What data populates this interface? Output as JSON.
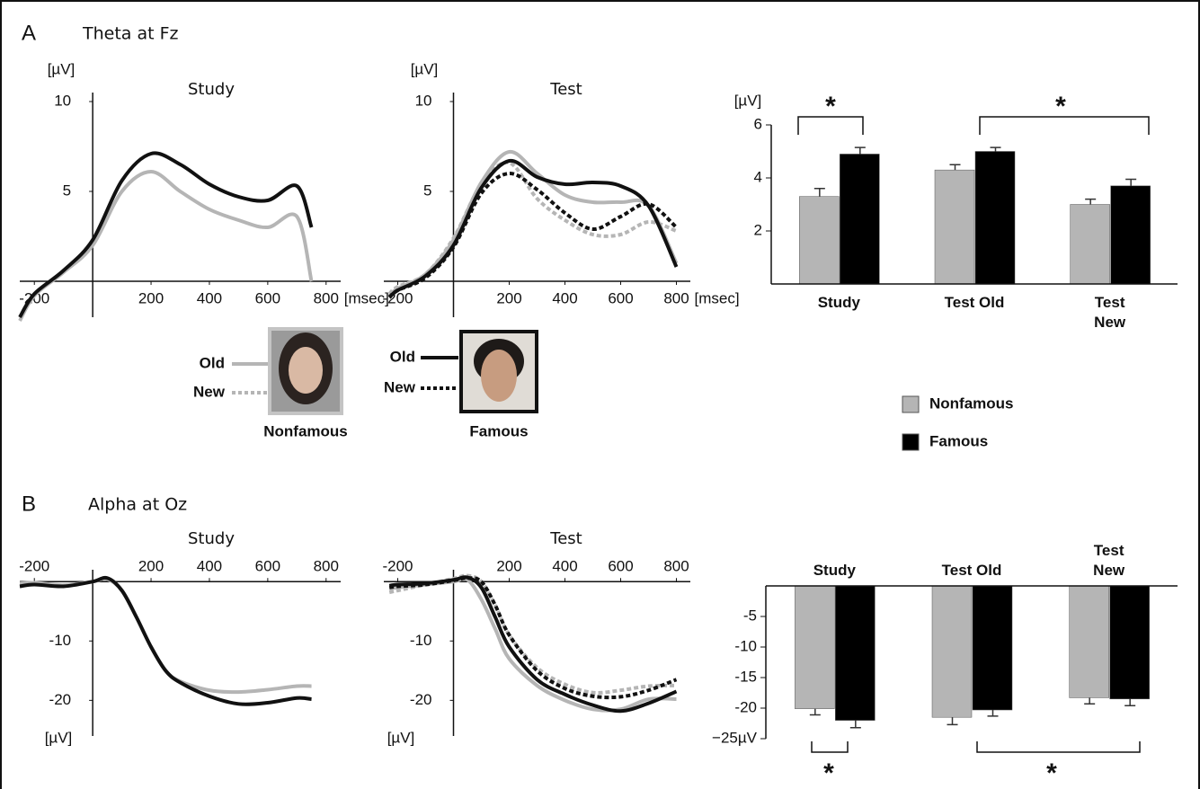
{
  "panels": [
    {
      "label": "A",
      "title": "Theta at Fz"
    },
    {
      "label": "B",
      "title": "Alpha at Oz"
    }
  ],
  "face_legend": {
    "nonfamous": {
      "old": "Old",
      "new": "New",
      "caption": "Nonfamous"
    },
    "famous": {
      "old": "Old",
      "new": "New",
      "caption": "Famous"
    }
  },
  "chart_data": [
    {
      "type": "line",
      "title": "Study",
      "ylabel": "[µV]",
      "xlabel": "[msec]",
      "x": [
        -250,
        -200,
        -100,
        0,
        100,
        200,
        300,
        400,
        500,
        600,
        700,
        750
      ],
      "xlim": [
        -250,
        850
      ],
      "ylim": [
        -2,
        10.5
      ],
      "xticks": [
        -200,
        200,
        400,
        600,
        800
      ],
      "yticks": [
        5,
        10
      ],
      "series": [
        {
          "color": "#b5b5b5",
          "dash": false,
          "values": [
            -2.2,
            -0.8,
            0.5,
            2.0,
            5.0,
            6.1,
            5.0,
            4.0,
            3.4,
            3.0,
            3.6,
            0
          ]
        },
        {
          "color": "#111111",
          "dash": false,
          "values": [
            -2,
            -0.7,
            0.6,
            2.3,
            5.6,
            7.1,
            6.5,
            5.4,
            4.7,
            4.5,
            5.3,
            3.0
          ]
        }
      ]
    },
    {
      "type": "line",
      "title": "Test",
      "ylabel": "[µV]",
      "xlabel": "[msec]",
      "x": [
        -230,
        -200,
        -100,
        0,
        100,
        200,
        300,
        400,
        500,
        600,
        700,
        800
      ],
      "xlim": [
        -250,
        850
      ],
      "ylim": [
        -2,
        10.5
      ],
      "xticks": [
        -200,
        200,
        400,
        600,
        800
      ],
      "yticks": [
        5,
        10
      ],
      "series": [
        {
          "color": "#b5b5b5",
          "dash": true,
          "values": [
            -0.7,
            -0.3,
            0.4,
            2.4,
            5.4,
            6.6,
            4.6,
            3.4,
            2.6,
            2.6,
            3.3,
            2.8
          ]
        },
        {
          "color": "#b5b5b5",
          "dash": false,
          "values": [
            -0.8,
            -0.4,
            0.4,
            2.3,
            5.5,
            7.2,
            6.0,
            4.8,
            4.4,
            4.4,
            4.2,
            1.0
          ]
        },
        {
          "color": "#111111",
          "dash": true,
          "values": [
            -0.9,
            -0.5,
            0.2,
            1.9,
            4.9,
            6.0,
            5.1,
            3.8,
            2.9,
            3.6,
            4.3,
            3.0
          ]
        },
        {
          "color": "#111111",
          "dash": false,
          "values": [
            -0.9,
            -0.5,
            0.3,
            2.0,
            5.2,
            6.7,
            5.8,
            5.4,
            5.5,
            5.3,
            4.2,
            0.8
          ]
        }
      ]
    },
    {
      "type": "bar",
      "ylabel": "[µV]",
      "categories": [
        "Study",
        "Test Old",
        "Test New"
      ],
      "ylim": [
        0,
        6
      ],
      "yticks": [
        2,
        4,
        6
      ],
      "annotations": [
        "*",
        "*"
      ],
      "series": [
        {
          "name": "Nonfamous",
          "color": "#b5b5b5",
          "values": [
            3.3,
            4.3,
            3.0
          ],
          "errors": [
            0.3,
            0.2,
            0.2
          ]
        },
        {
          "name": "Famous",
          "color": "#000000",
          "values": [
            4.9,
            5.0,
            3.7
          ],
          "errors": [
            0.25,
            0.15,
            0.25
          ]
        }
      ]
    },
    {
      "type": "line",
      "title": "Study",
      "ylabel": "[µV]",
      "x": [
        -250,
        -200,
        -100,
        0,
        50,
        100,
        150,
        200,
        250,
        300,
        400,
        500,
        600,
        700,
        750
      ],
      "xlim": [
        -250,
        850
      ],
      "ylim": [
        -26,
        2
      ],
      "xticks": [
        -200,
        200,
        400,
        600,
        800
      ],
      "yticks": [
        -10,
        -20
      ],
      "series": [
        {
          "color": "#b5b5b5",
          "dash": false,
          "values": [
            -0.3,
            -0.2,
            -0.6,
            0,
            0.4,
            -1.5,
            -6,
            -11,
            -15,
            -16.8,
            -18.3,
            -18.6,
            -18.2,
            -17.6,
            -17.6
          ]
        },
        {
          "color": "#111111",
          "dash": false,
          "values": [
            -0.8,
            -0.5,
            -0.8,
            0,
            0.6,
            -1.5,
            -6,
            -11,
            -15,
            -17,
            -19.3,
            -20.6,
            -20.4,
            -19.6,
            -19.8
          ]
        }
      ]
    },
    {
      "type": "line",
      "title": "Test",
      "ylabel": "[µV]",
      "x": [
        -230,
        -200,
        -100,
        0,
        50,
        100,
        150,
        200,
        300,
        400,
        500,
        600,
        700,
        800
      ],
      "xlim": [
        -250,
        850
      ],
      "ylim": [
        -26,
        2
      ],
      "xticks": [
        -200,
        200,
        400,
        600,
        800
      ],
      "yticks": [
        -10,
        -20
      ],
      "series": [
        {
          "color": "#b5b5b5",
          "dash": true,
          "values": [
            -1.8,
            -1.5,
            -0.5,
            0.5,
            1,
            0,
            -4,
            -9,
            -14.5,
            -17.3,
            -18.7,
            -18.3,
            -17.6,
            -17.5
          ]
        },
        {
          "color": "#b5b5b5",
          "dash": false,
          "values": [
            -1.2,
            -1,
            -0.5,
            0,
            0.3,
            -3,
            -8,
            -13,
            -17.5,
            -20,
            -21.5,
            -21.5,
            -19.8,
            -19.8
          ]
        },
        {
          "color": "#111111",
          "dash": true,
          "values": [
            -1,
            -0.8,
            -0.5,
            0.2,
            0.6,
            0,
            -4,
            -9,
            -15,
            -18,
            -19.3,
            -19.4,
            -18.3,
            -16.5
          ]
        },
        {
          "color": "#111111",
          "dash": false,
          "values": [
            -0.7,
            -0.5,
            -0.3,
            0.3,
            0.7,
            -1,
            -6,
            -11,
            -16.5,
            -19,
            -20.8,
            -21.8,
            -20.5,
            -18.5
          ]
        }
      ]
    },
    {
      "type": "bar",
      "categories": [
        "Study",
        "Test Old",
        "Test New"
      ],
      "ylim": [
        -25,
        0
      ],
      "yticks": [
        -5,
        -10,
        -15,
        -20,
        {
          "value": -25,
          "label": "−25µV"
        }
      ],
      "annotations": [
        "*",
        "*"
      ],
      "series": [
        {
          "name": "Nonfamous",
          "color": "#b5b5b5",
          "values": [
            -20.1,
            -21.5,
            -18.3
          ],
          "errors": [
            1,
            1.2,
            1
          ]
        },
        {
          "name": "Famous",
          "color": "#000000",
          "values": [
            -22,
            -20.3,
            -18.5
          ],
          "errors": [
            1.2,
            1,
            1.1
          ]
        }
      ]
    }
  ]
}
